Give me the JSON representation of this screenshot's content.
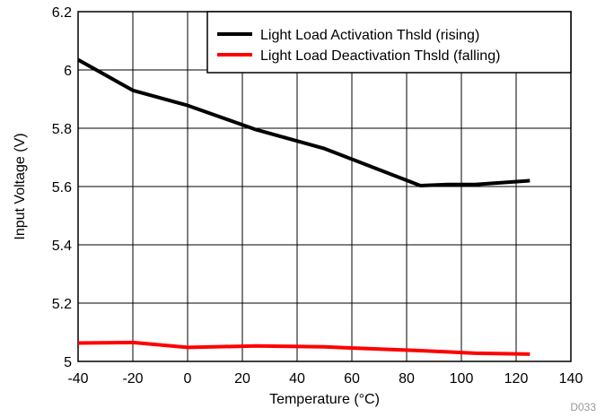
{
  "chart_data": {
    "type": "line",
    "title": "",
    "xlabel": "Temperature (°C)",
    "ylabel": "Input Voltage (V)",
    "xlim": [
      -40,
      140
    ],
    "ylim": [
      5,
      6.2
    ],
    "xticks": [
      -40,
      -20,
      0,
      20,
      40,
      60,
      80,
      100,
      120,
      140
    ],
    "yticks": [
      5,
      5.2,
      5.4,
      5.6,
      5.8,
      6,
      6.2
    ],
    "xtick_labels": [
      "-40",
      "-20",
      "0",
      "20",
      "40",
      "60",
      "80",
      "100",
      "120",
      "140"
    ],
    "ytick_labels": [
      "5",
      "5.2",
      "5.4",
      "5.6",
      "5.8",
      "6",
      "6.2"
    ],
    "grid": true,
    "legend_position": "top-right",
    "series": [
      {
        "name": "Light Load Activation Thsld (rising)",
        "color": "#000000",
        "x": [
          -40,
          -20,
          0,
          25,
          50,
          85,
          95,
          105,
          125
        ],
        "y": [
          6.035,
          5.93,
          5.878,
          5.795,
          5.73,
          5.603,
          5.607,
          5.607,
          5.62
        ]
      },
      {
        "name": "Light Load Deactivation Thsld (falling)",
        "color": "#ff0000",
        "x": [
          -40,
          -20,
          0,
          25,
          50,
          85,
          105,
          125
        ],
        "y": [
          5.063,
          5.065,
          5.048,
          5.053,
          5.05,
          5.037,
          5.028,
          5.025
        ]
      }
    ],
    "footnote": "D033"
  }
}
